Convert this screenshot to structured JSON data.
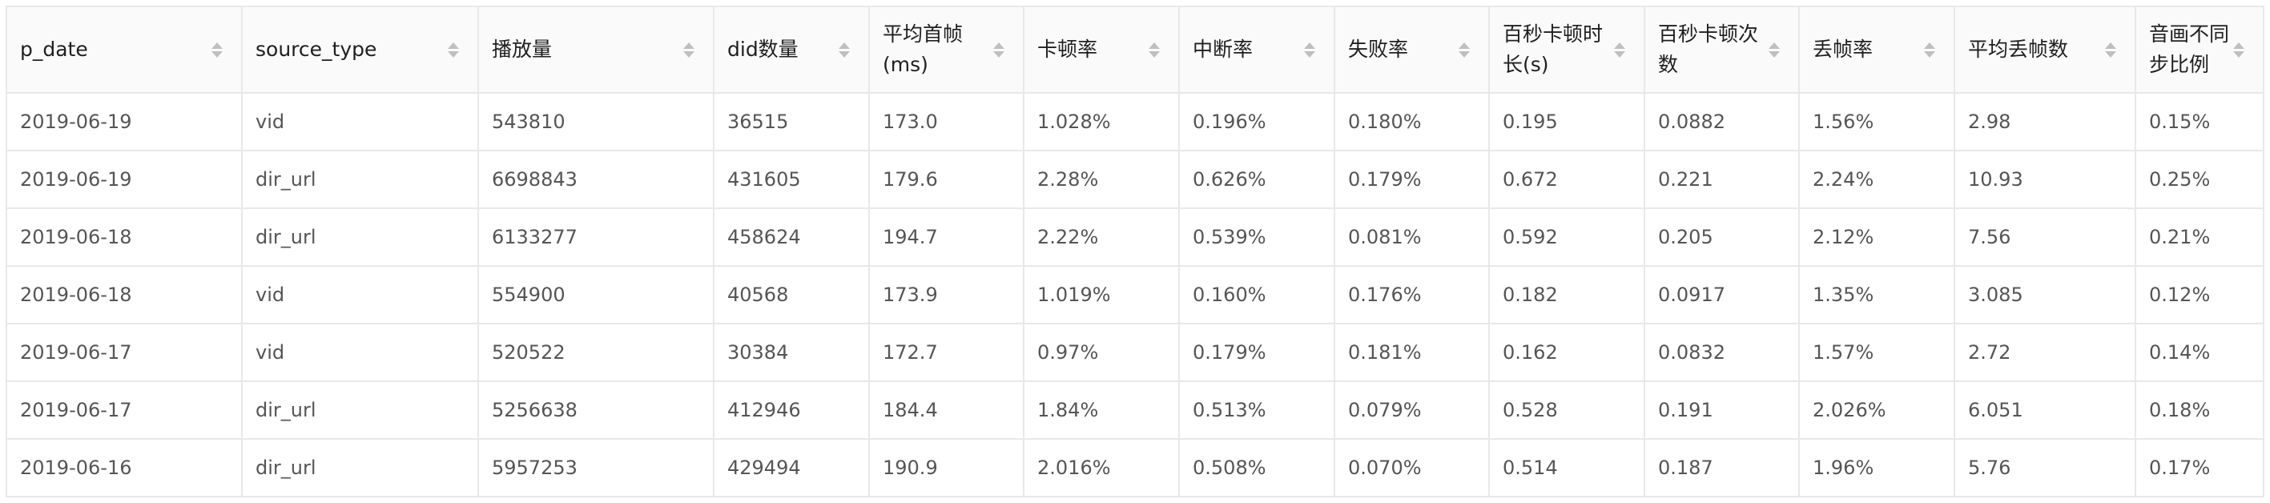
{
  "table": {
    "columns": [
      {
        "key": "p_date",
        "label": "p_date"
      },
      {
        "key": "source_type",
        "label": "source_type"
      },
      {
        "key": "play_count",
        "label": "播放量"
      },
      {
        "key": "did_count",
        "label": "did数量"
      },
      {
        "key": "avg_first_frame",
        "label": "平均首帧(ms)"
      },
      {
        "key": "stall_rate",
        "label": "卡顿率"
      },
      {
        "key": "interrupt_rate",
        "label": "中断率"
      },
      {
        "key": "fail_rate",
        "label": "失败率"
      },
      {
        "key": "stall_duration_per100s",
        "label": "百秒卡顿时长(s)"
      },
      {
        "key": "stall_count_per100s",
        "label": "百秒卡顿次数"
      },
      {
        "key": "frame_drop_rate",
        "label": "丢帧率"
      },
      {
        "key": "avg_frame_drops",
        "label": "平均丢帧数"
      },
      {
        "key": "av_desync_ratio",
        "label": "音画不同步比例"
      }
    ],
    "rows": [
      [
        "2019-06-19",
        "vid",
        "543810",
        "36515",
        "173.0",
        "1.028%",
        "0.196%",
        "0.180%",
        "0.195",
        "0.0882",
        "1.56%",
        "2.98",
        "0.15%"
      ],
      [
        "2019-06-19",
        "dir_url",
        "6698843",
        "431605",
        "179.6",
        "2.28%",
        "0.626%",
        "0.179%",
        "0.672",
        "0.221",
        "2.24%",
        "10.93",
        "0.25%"
      ],
      [
        "2019-06-18",
        "dir_url",
        "6133277",
        "458624",
        "194.7",
        "2.22%",
        "0.539%",
        "0.081%",
        "0.592",
        "0.205",
        "2.12%",
        "7.56",
        "0.21%"
      ],
      [
        "2019-06-18",
        "vid",
        "554900",
        "40568",
        "173.9",
        "1.019%",
        "0.160%",
        "0.176%",
        "0.182",
        "0.0917",
        "1.35%",
        "3.085",
        "0.12%"
      ],
      [
        "2019-06-17",
        "vid",
        "520522",
        "30384",
        "172.7",
        "0.97%",
        "0.179%",
        "0.181%",
        "0.162",
        "0.0832",
        "1.57%",
        "2.72",
        "0.14%"
      ],
      [
        "2019-06-17",
        "dir_url",
        "5256638",
        "412946",
        "184.4",
        "1.84%",
        "0.513%",
        "0.079%",
        "0.528",
        "0.191",
        "2.026%",
        "6.051",
        "0.18%"
      ],
      [
        "2019-06-16",
        "dir_url",
        "5957253",
        "429494",
        "190.9",
        "2.016%",
        "0.508%",
        "0.070%",
        "0.514",
        "0.187",
        "1.96%",
        "5.76",
        "0.17%"
      ]
    ]
  }
}
